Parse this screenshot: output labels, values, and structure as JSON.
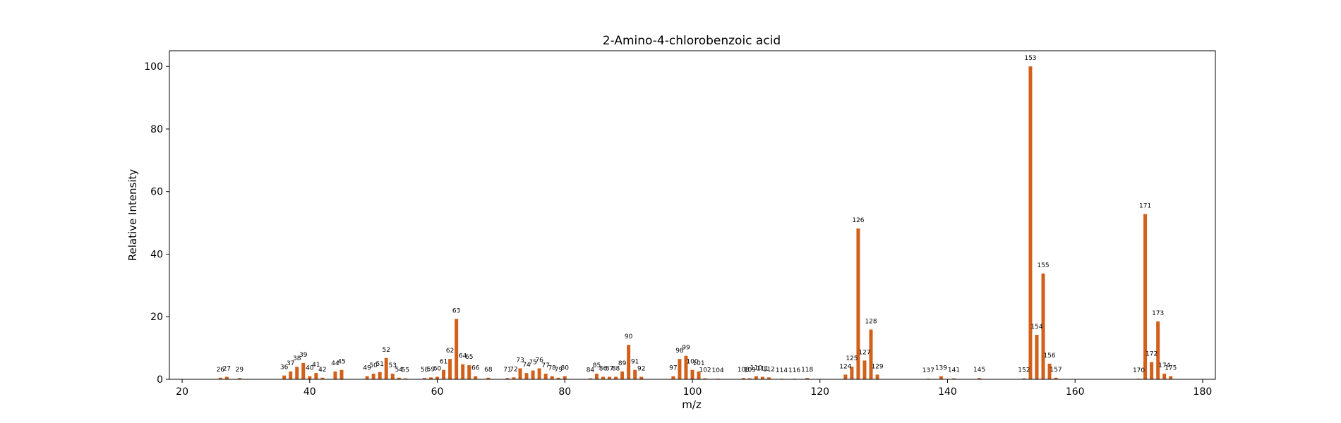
{
  "chart_data": {
    "type": "bar",
    "title": "2-Amino-4-chlorobenzoic acid",
    "xlabel": "m/z",
    "ylabel": "Relative Intensity",
    "xlim": [
      18,
      182
    ],
    "ylim": [
      0,
      105
    ],
    "xticks": [
      20,
      40,
      60,
      80,
      100,
      120,
      140,
      160,
      180
    ],
    "yticks": [
      0,
      20,
      40,
      60,
      80,
      100
    ],
    "bar_color": "#d2601a",
    "series": [
      {
        "x": [
          26,
          27,
          29,
          36,
          37,
          38,
          39,
          40,
          41,
          42,
          44,
          45,
          49,
          50,
          51,
          52,
          53,
          54,
          55,
          58,
          59,
          60,
          61,
          62,
          63,
          64,
          65,
          66,
          68,
          71,
          72,
          73,
          74,
          75,
          76,
          77,
          78,
          79,
          80,
          84,
          85,
          86,
          87,
          88,
          89,
          90,
          91,
          92,
          97,
          98,
          99,
          100,
          101,
          102,
          104,
          108,
          109,
          110,
          111,
          112,
          114,
          116,
          118,
          124,
          125,
          126,
          127,
          128,
          129,
          137,
          139,
          141,
          145,
          152,
          153,
          154,
          155,
          156,
          157,
          170,
          171,
          172,
          173,
          174,
          175
        ],
        "values": [
          0.5,
          0.8,
          0.4,
          1.2,
          2.5,
          4.0,
          5.2,
          1.0,
          2.0,
          0.5,
          2.5,
          3.0,
          1.0,
          1.8,
          2.3,
          6.8,
          1.8,
          0.5,
          0.3,
          0.4,
          0.6,
          0.8,
          3.0,
          6.5,
          19.3,
          4.8,
          4.5,
          1.0,
          0.5,
          0.4,
          0.6,
          3.5,
          2.0,
          2.8,
          3.5,
          1.8,
          1.0,
          0.5,
          1.0,
          0.3,
          1.8,
          0.8,
          0.8,
          0.8,
          2.5,
          11.0,
          3.0,
          0.8,
          1.0,
          6.5,
          7.5,
          3.0,
          2.5,
          0.3,
          0.2,
          0.4,
          0.3,
          1.0,
          0.8,
          0.6,
          0.2,
          0.2,
          0.4,
          1.5,
          4.0,
          48.2,
          6.0,
          15.9,
          1.5,
          0.2,
          1.0,
          0.3,
          0.4,
          0.3,
          100,
          14.2,
          33.8,
          5.0,
          0.5,
          0.2,
          52.8,
          5.5,
          18.5,
          1.8,
          1.0
        ]
      }
    ]
  }
}
